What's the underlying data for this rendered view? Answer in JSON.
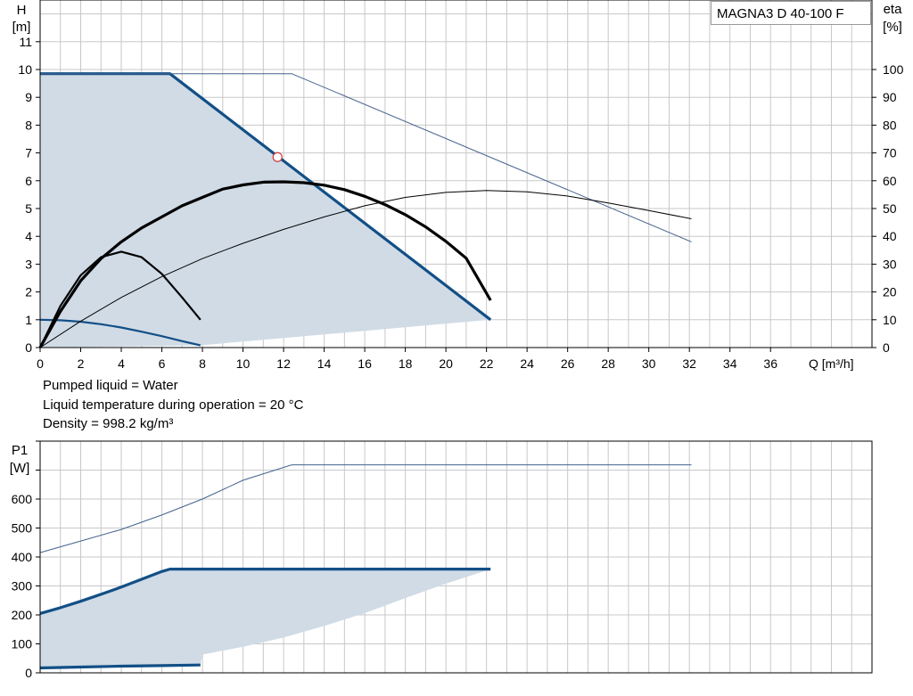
{
  "model": "MAGNA3 D 40-100 F",
  "liquid_info": [
    "Pumped liquid = Water",
    "Liquid temperature during operation = 20 °C",
    "Density = 998.2 kg/m³"
  ],
  "colors": {
    "max_curve": "#124f86",
    "region": "#d0dbe6",
    "thin": "#43628c",
    "eta": "#000000",
    "grid": "#c8c8c8"
  },
  "chart_data": [
    {
      "type": "line",
      "xlabel": "Q [m³/h]",
      "ylabel_top": "H",
      "ylabel_bottom": "[m]",
      "y2label_top": "eta",
      "y2label_bottom": "[%]",
      "xlim": [
        0,
        41
      ],
      "ylim": [
        0,
        12.5
      ],
      "y2lim": [
        0,
        125
      ],
      "xticks": [
        0,
        2,
        4,
        6,
        8,
        10,
        12,
        14,
        16,
        18,
        20,
        22,
        24,
        26,
        28,
        30,
        32,
        34,
        36
      ],
      "yticks": [
        0,
        1,
        2,
        3,
        4,
        5,
        6,
        7,
        8,
        9,
        10,
        11
      ],
      "y2ticks": [
        0,
        10,
        20,
        30,
        40,
        50,
        60,
        70,
        80,
        90,
        100
      ],
      "grid": true,
      "operating_point": {
        "x": 11.7,
        "y": 6.85
      },
      "series": [
        {
          "axis": "y",
          "style": "region",
          "x": [
            0,
            6.4,
            22.2,
            7.9,
            0
          ],
          "y": [
            9.85,
            9.85,
            1.0,
            0.08,
            0
          ]
        },
        {
          "axis": "y",
          "style": "thick",
          "x": [
            0,
            6.4,
            22.2
          ],
          "y": [
            9.85,
            9.85,
            1.0
          ]
        },
        {
          "axis": "y",
          "style": "medium",
          "x": [
            0,
            1,
            2,
            3,
            4,
            5,
            6,
            7,
            7.9
          ],
          "y": [
            1.0,
            0.98,
            0.93,
            0.84,
            0.72,
            0.57,
            0.41,
            0.23,
            0.08
          ]
        },
        {
          "axis": "y",
          "style": "thin",
          "x": [
            0,
            12.4,
            32.1
          ],
          "y": [
            9.85,
            9.85,
            3.8
          ]
        },
        {
          "axis": "y2",
          "style": "eta-thick",
          "x": [
            0,
            1,
            2,
            3,
            4,
            5,
            6,
            7,
            8,
            9,
            10,
            11,
            12,
            13,
            14,
            15,
            16,
            17,
            18,
            19,
            20,
            21,
            22.2
          ],
          "y": [
            0,
            13,
            24,
            32,
            38,
            43,
            47,
            51,
            54,
            57,
            58.5,
            59.5,
            59.6,
            59.3,
            58.4,
            56.8,
            54.4,
            51.4,
            47.8,
            43.4,
            38.2,
            32.1,
            17
          ]
        },
        {
          "axis": "y2",
          "style": "eta-medium",
          "x": [
            0,
            1,
            2,
            3,
            4,
            5,
            6,
            7,
            7.9
          ],
          "y": [
            0,
            15,
            26,
            32.5,
            34.5,
            32.5,
            26.5,
            18,
            10
          ]
        },
        {
          "axis": "y2",
          "style": "eta-thin",
          "x": [
            0,
            2,
            4,
            6,
            8,
            10,
            12,
            14,
            16,
            18,
            20,
            22,
            24,
            26,
            28,
            30,
            32.1
          ],
          "y": [
            0,
            9.5,
            18,
            25.5,
            32,
            37.5,
            42.5,
            47,
            51,
            54,
            55.8,
            56.5,
            56,
            54.5,
            52,
            49.3,
            46.3
          ]
        }
      ]
    },
    {
      "type": "line",
      "ylabel_top": "P1",
      "ylabel_bottom": "[W]",
      "xlim": [
        0,
        41
      ],
      "ylim": [
        0,
        800
      ],
      "yticks": [
        0,
        100,
        200,
        300,
        400,
        500,
        600
      ],
      "grid": true,
      "series": [
        {
          "style": "region",
          "x": [
            0,
            6.4,
            22.2,
            20,
            18,
            16,
            14,
            12,
            10,
            8,
            7.9,
            0
          ],
          "y": [
            205,
            358,
            358,
            308,
            258,
            206,
            162,
            122,
            90,
            63,
            27,
            17
          ]
        },
        {
          "style": "thick",
          "x": [
            0,
            1,
            2,
            3,
            4,
            5,
            6,
            6.4,
            22.2
          ],
          "y": [
            205,
            225,
            247,
            271,
            296,
            323,
            350,
            358,
            358
          ]
        },
        {
          "style": "thick",
          "x": [
            0,
            2,
            4,
            6,
            7.9
          ],
          "y": [
            17,
            20,
            23,
            25,
            27
          ]
        },
        {
          "style": "thin",
          "x": [
            0,
            2,
            4,
            6,
            8,
            10,
            12.4,
            32.1
          ],
          "y": [
            415,
            455,
            495,
            545,
            600,
            665,
            718,
            718
          ]
        }
      ]
    }
  ]
}
